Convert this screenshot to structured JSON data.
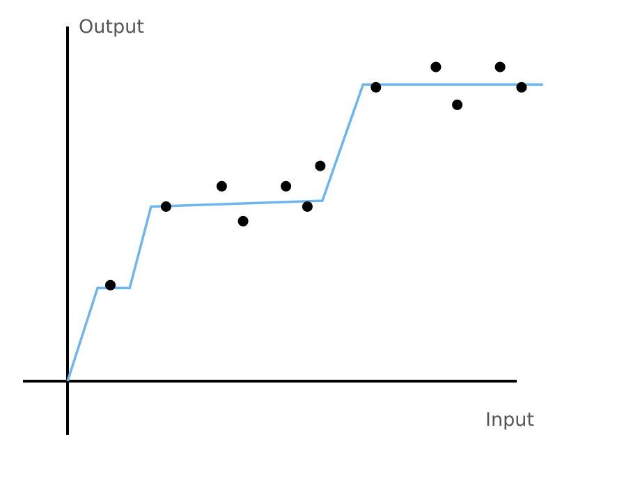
{
  "chart_data": {
    "type": "scatter",
    "title": "",
    "xlabel": "Input",
    "ylabel": "Output",
    "xlim": [
      -1,
      10.4
    ],
    "ylim": [
      -1.2,
      6.2
    ],
    "grid": false,
    "ticks": false,
    "series": [
      {
        "type": "scatter",
        "color": "#000000",
        "x": [
          1.0,
          2.3,
          3.6,
          4.1,
          5.1,
          5.6,
          5.9,
          7.2,
          8.6,
          9.1,
          10.1,
          10.6
        ],
        "y": [
          1.65,
          3.0,
          3.35,
          2.75,
          3.35,
          3.0,
          3.7,
          5.05,
          5.4,
          4.75,
          5.4,
          5.05
        ]
      },
      {
        "type": "line",
        "color": "#6BB5F0",
        "x": [
          0.0,
          0.7,
          1.45,
          1.95,
          5.95,
          6.9,
          11.1
        ],
        "y": [
          0.0,
          1.6,
          1.6,
          3.0,
          3.1,
          5.1,
          5.1
        ]
      }
    ]
  },
  "colors": {
    "axis": "#000000",
    "fit_line": "#6BB5F0",
    "points": "#000000",
    "label_text": "#555555"
  }
}
